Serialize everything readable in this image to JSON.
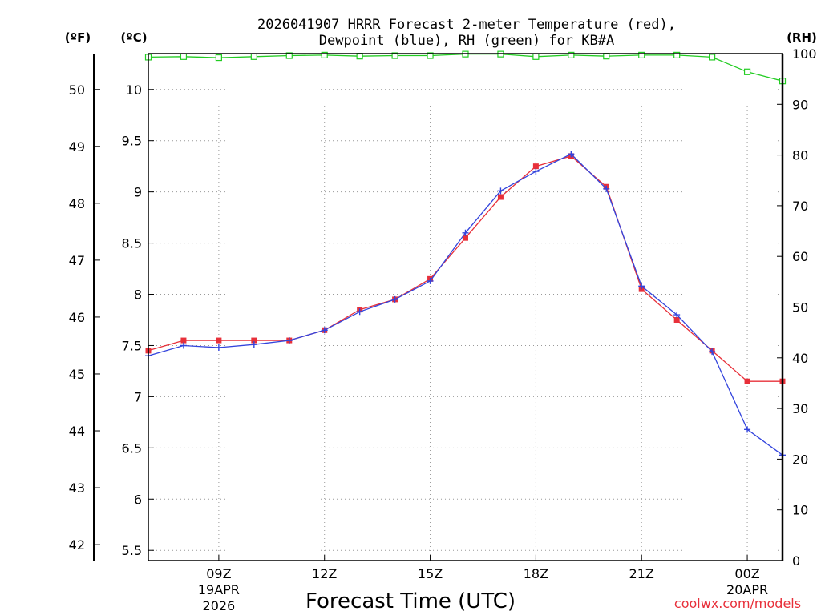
{
  "chart_data": {
    "type": "line",
    "title_line1": "2026041907 HRRR Forecast 2-meter Temperature (red),",
    "title_line2": "Dewpoint (blue), RH (green) for KB#A",
    "xlabel": "Forecast Time (UTC)",
    "credit": "coolwx.com/models",
    "unit_f": "(ºF)",
    "unit_c": "(ºC)",
    "unit_rh": "(RH)",
    "x": [
      7,
      8,
      9,
      10,
      11,
      12,
      13,
      14,
      15,
      16,
      17,
      18,
      19,
      20,
      21,
      22,
      23,
      24,
      25
    ],
    "xlim": [
      7,
      25
    ],
    "x_ticks": [
      {
        "hour": 9,
        "label": "09Z",
        "sub1": "19APR",
        "sub2": "2026"
      },
      {
        "hour": 12,
        "label": "12Z",
        "sub1": "",
        "sub2": ""
      },
      {
        "hour": 15,
        "label": "15Z",
        "sub1": "",
        "sub2": ""
      },
      {
        "hour": 18,
        "label": "18Z",
        "sub1": "",
        "sub2": ""
      },
      {
        "hour": 21,
        "label": "21Z",
        "sub1": "",
        "sub2": ""
      },
      {
        "hour": 24,
        "label": "00Z",
        "sub1": "20APR",
        "sub2": ""
      }
    ],
    "ylim_c": [
      5.4,
      10.35
    ],
    "c_ticks": [
      "5.5",
      "6",
      "6.5",
      "7",
      "7.5",
      "8",
      "8.5",
      "9",
      "9.5",
      "10"
    ],
    "f_ticks": [
      "42",
      "43",
      "44",
      "45",
      "46",
      "47",
      "48",
      "49",
      "50"
    ],
    "ylim_rh": [
      0,
      100
    ],
    "rh_ticks": [
      "0",
      "10",
      "20",
      "30",
      "40",
      "50",
      "60",
      "70",
      "80",
      "90",
      "100"
    ],
    "series": [
      {
        "name": "Temperature",
        "color": "#e8303a",
        "marker": "square",
        "values": [
          7.45,
          7.55,
          7.55,
          7.55,
          7.55,
          7.65,
          7.85,
          7.95,
          8.15,
          8.55,
          8.95,
          9.25,
          9.35,
          9.05,
          8.05,
          7.75,
          7.45,
          7.15,
          7.15
        ]
      },
      {
        "name": "Dewpoint",
        "color": "#3344dd",
        "marker": "plus",
        "values": [
          7.4,
          7.5,
          7.48,
          7.51,
          7.55,
          7.65,
          7.83,
          7.95,
          8.13,
          8.6,
          9.01,
          9.2,
          9.37,
          9.03,
          8.08,
          7.8,
          7.44,
          6.68,
          6.43
        ]
      },
      {
        "name": "RH",
        "color": "#22cc22",
        "marker": "open-square",
        "axis": "rh",
        "values": [
          99.3,
          99.4,
          99.2,
          99.4,
          99.6,
          99.7,
          99.5,
          99.6,
          99.6,
          99.9,
          99.9,
          99.4,
          99.7,
          99.5,
          99.7,
          99.7,
          99.3,
          96.4,
          94.6
        ]
      }
    ]
  }
}
